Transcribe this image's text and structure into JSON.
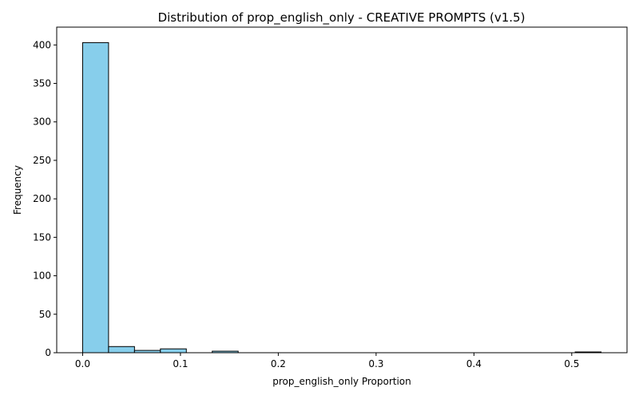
{
  "chart_data": {
    "type": "bar",
    "title": "Distribution of prop_english_only - CREATIVE PROMPTS (v1.5)",
    "xlabel": "prop_english_only Proportion",
    "ylabel": "Frequency",
    "xlim": [
      -0.0265,
      0.5565
    ],
    "ylim": [
      0,
      423.15
    ],
    "xticks": [
      0.0,
      0.1,
      0.2,
      0.3,
      0.4,
      0.5
    ],
    "xtick_labels": [
      "0.0",
      "0.1",
      "0.2",
      "0.3",
      "0.4",
      "0.5"
    ],
    "yticks": [
      0,
      50,
      100,
      150,
      200,
      250,
      300,
      350,
      400
    ],
    "ytick_labels": [
      "0",
      "50",
      "100",
      "150",
      "200",
      "250",
      "300",
      "350",
      "400"
    ],
    "bin_edges": [
      0.0,
      0.0265,
      0.053,
      0.0795,
      0.106,
      0.1325,
      0.159,
      0.1855,
      0.212,
      0.2385,
      0.265,
      0.2915,
      0.318,
      0.3445,
      0.371,
      0.3975,
      0.424,
      0.4505,
      0.477,
      0.5035,
      0.53
    ],
    "values": [
      403,
      8,
      3,
      5,
      0,
      2,
      0,
      0,
      0,
      0,
      0,
      0,
      0,
      0,
      0,
      0,
      0,
      0,
      0,
      1
    ],
    "bar_color": "#87CEEB",
    "edge_color": "#000000",
    "grid": false
  }
}
